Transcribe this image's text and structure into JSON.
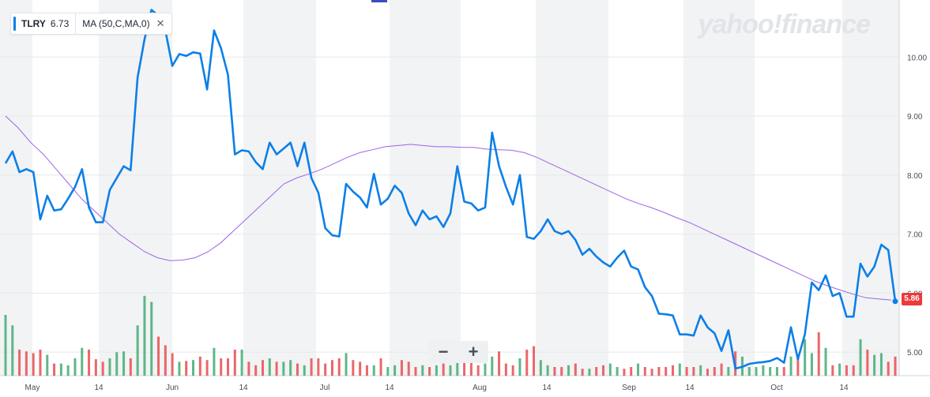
{
  "legend": {
    "ticker": "TLRY",
    "last": "6.73",
    "indicator": "MA (50,C,MA,0)",
    "close_glyph": "✕"
  },
  "brand": "yahoo!finance",
  "zoom": {
    "minus": "−",
    "plus": "+"
  },
  "price_badge": "5.86",
  "colors": {
    "price_line": "#0c7fe8",
    "ma_line": "#9d64e8",
    "volume_up": "#4caf7c",
    "volume_down": "#e8575a",
    "shade": "#f2f3f4",
    "badge": "#ec3a3a"
  },
  "chart_data": {
    "type": "line",
    "y_ticks": [
      "10.00",
      "9.00",
      "8.00",
      "7.00",
      "6.00",
      "5.00"
    ],
    "x_ticks": [
      "May",
      "14",
      "Jun",
      "14",
      "Jul",
      "14",
      "Aug",
      "14",
      "Sep",
      "14",
      "Oct",
      "14"
    ],
    "ylim": [
      4.6,
      10.9
    ],
    "price": [
      8.2,
      8.4,
      8.05,
      8.1,
      8.05,
      7.25,
      7.65,
      7.4,
      7.42,
      7.6,
      7.8,
      8.1,
      7.45,
      7.2,
      7.2,
      7.75,
      7.95,
      8.15,
      8.08,
      9.65,
      10.3,
      10.8,
      10.7,
      10.45,
      9.85,
      10.05,
      10.02,
      10.08,
      10.06,
      9.45,
      10.45,
      10.15,
      9.7,
      8.35,
      8.42,
      8.4,
      8.22,
      8.1,
      8.55,
      8.35,
      8.45,
      8.55,
      8.15,
      8.55,
      7.95,
      7.7,
      7.1,
      6.98,
      6.96,
      7.85,
      7.72,
      7.62,
      7.45,
      8.02,
      7.5,
      7.6,
      7.82,
      7.7,
      7.35,
      7.15,
      7.4,
      7.25,
      7.3,
      7.12,
      7.35,
      8.15,
      7.55,
      7.52,
      7.4,
      7.45,
      8.72,
      8.15,
      7.8,
      7.5,
      8.0,
      6.95,
      6.92,
      7.05,
      7.25,
      7.05,
      7.0,
      7.05,
      6.9,
      6.65,
      6.75,
      6.62,
      6.52,
      6.45,
      6.6,
      6.72,
      6.45,
      6.4,
      6.1,
      5.95,
      5.65,
      5.64,
      5.62,
      5.3,
      5.3,
      5.28,
      5.62,
      5.42,
      5.32,
      5.02,
      5.37,
      4.72,
      4.75,
      4.8,
      4.82,
      4.83,
      4.85,
      4.9,
      4.82,
      5.42,
      4.88,
      5.3,
      6.18,
      6.05,
      6.3,
      5.95,
      6.0,
      5.6,
      5.6,
      6.5,
      6.28,
      6.45,
      6.82,
      6.73,
      5.86
    ],
    "ma": [
      9.0,
      8.8,
      8.55,
      8.35,
      8.1,
      7.85,
      7.6,
      7.4,
      7.2,
      7.0,
      6.85,
      6.7,
      6.6,
      6.55,
      6.56,
      6.6,
      6.7,
      6.85,
      7.05,
      7.25,
      7.45,
      7.65,
      7.85,
      7.95,
      8.02,
      8.1,
      8.2,
      8.3,
      8.38,
      8.43,
      8.48,
      8.5,
      8.52,
      8.5,
      8.48,
      8.48,
      8.47,
      8.47,
      8.44,
      8.43,
      8.42,
      8.38,
      8.3,
      8.2,
      8.1,
      8.0,
      7.9,
      7.8,
      7.7,
      7.6,
      7.52,
      7.45,
      7.37,
      7.28,
      7.2,
      7.1,
      7.0,
      6.9,
      6.8,
      6.7,
      6.6,
      6.5,
      6.4,
      6.3,
      6.2,
      6.12,
      6.05,
      5.98,
      5.92,
      5.9,
      5.88
    ],
    "volume": [
      0.7,
      0.58,
      0.3,
      0.28,
      0.26,
      0.3,
      0.24,
      0.14,
      0.14,
      0.12,
      0.2,
      0.32,
      0.3,
      0.19,
      0.16,
      0.2,
      0.27,
      0.28,
      0.2,
      0.58,
      0.92,
      0.85,
      0.45,
      0.35,
      0.26,
      0.16,
      0.17,
      0.18,
      0.22,
      0.18,
      0.32,
      0.2,
      0.2,
      0.3,
      0.3,
      0.16,
      0.12,
      0.18,
      0.2,
      0.16,
      0.16,
      0.18,
      0.14,
      0.12,
      0.2,
      0.2,
      0.14,
      0.18,
      0.2,
      0.26,
      0.18,
      0.16,
      0.12,
      0.12,
      0.2,
      0.1,
      0.12,
      0.18,
      0.16,
      0.1,
      0.12,
      0.1,
      0.12,
      0.14,
      0.12,
      0.16,
      0.2,
      0.24,
      0.12,
      0.14,
      0.22,
      0.28,
      0.14,
      0.12,
      0.2,
      0.3,
      0.34,
      0.18,
      0.12,
      0.1,
      0.1,
      0.12,
      0.14,
      0.08,
      0.08,
      0.1,
      0.12,
      0.14,
      0.1,
      0.08,
      0.1,
      0.14,
      0.1,
      0.08,
      0.1,
      0.1,
      0.12,
      0.14,
      0.1,
      0.1,
      0.12,
      0.08,
      0.1,
      0.14,
      0.1,
      0.28,
      0.22,
      0.1,
      0.1,
      0.12,
      0.1,
      0.1,
      0.1,
      0.22,
      0.2,
      0.42,
      0.26,
      0.5,
      0.32,
      0.12,
      0.14,
      0.12,
      0.12,
      0.42,
      0.3,
      0.24,
      0.26,
      0.16,
      0.22
    ],
    "volume_up": [
      1,
      1,
      0,
      0,
      0,
      0,
      1,
      0,
      1,
      1,
      1,
      1,
      0,
      0,
      0,
      1,
      1,
      1,
      0,
      1,
      1,
      1,
      0,
      0,
      0,
      1,
      0,
      1,
      0,
      0,
      1,
      0,
      0,
      0,
      1,
      0,
      0,
      0,
      1,
      0,
      1,
      1,
      0,
      1,
      0,
      0,
      0,
      0,
      0,
      1,
      0,
      0,
      0,
      1,
      0,
      1,
      1,
      0,
      0,
      0,
      1,
      0,
      1,
      0,
      1,
      1,
      0,
      0,
      0,
      1,
      1,
      0,
      0,
      0,
      1,
      0,
      0,
      1,
      1,
      0,
      0,
      1,
      0,
      0,
      1,
      0,
      0,
      1,
      1,
      0,
      0,
      1,
      0,
      0,
      0,
      0,
      0,
      1,
      0,
      0,
      1,
      0,
      0,
      0,
      1,
      0,
      1,
      1,
      1,
      1,
      1,
      1,
      0,
      1,
      0,
      1,
      1,
      0,
      1,
      0,
      1,
      0,
      0,
      1,
      0,
      1,
      1,
      0,
      0
    ]
  }
}
